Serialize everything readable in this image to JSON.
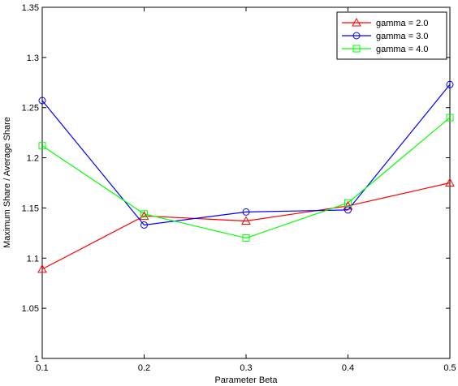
{
  "chart_data": {
    "type": "line",
    "title": "",
    "xlabel": "Parameter Beta",
    "ylabel": "Maximum Share / Average Share",
    "xlim": [
      0.1,
      0.5
    ],
    "ylim": [
      1,
      1.35
    ],
    "x": [
      0.1,
      0.2,
      0.3,
      0.4,
      0.5
    ],
    "xticks": [
      "0.1",
      "0.2",
      "0.3",
      "0.4",
      "0.5"
    ],
    "yticks": [
      "1",
      "1.05",
      "1.1",
      "1.15",
      "1.2",
      "1.25",
      "1.3",
      "1.35"
    ],
    "ytick_values": [
      1,
      1.05,
      1.1,
      1.15,
      1.2,
      1.25,
      1.3,
      1.35
    ],
    "xtick_values": [
      0.1,
      0.2,
      0.3,
      0.4,
      0.5
    ],
    "grid": false,
    "legend_position": "top-right",
    "series": [
      {
        "name": "gamma = 2.0",
        "color": "#ff0000",
        "marker": "triangle",
        "values": [
          1.089,
          1.142,
          1.137,
          1.152,
          1.175
        ]
      },
      {
        "name": "gamma = 3.0",
        "color": "#0000ff",
        "marker": "circle",
        "values": [
          1.257,
          1.133,
          1.146,
          1.148,
          1.273
        ]
      },
      {
        "name": "gamma = 4.0",
        "color": "#00ff00",
        "marker": "square",
        "values": [
          1.212,
          1.144,
          1.12,
          1.155,
          1.24
        ]
      }
    ]
  }
}
